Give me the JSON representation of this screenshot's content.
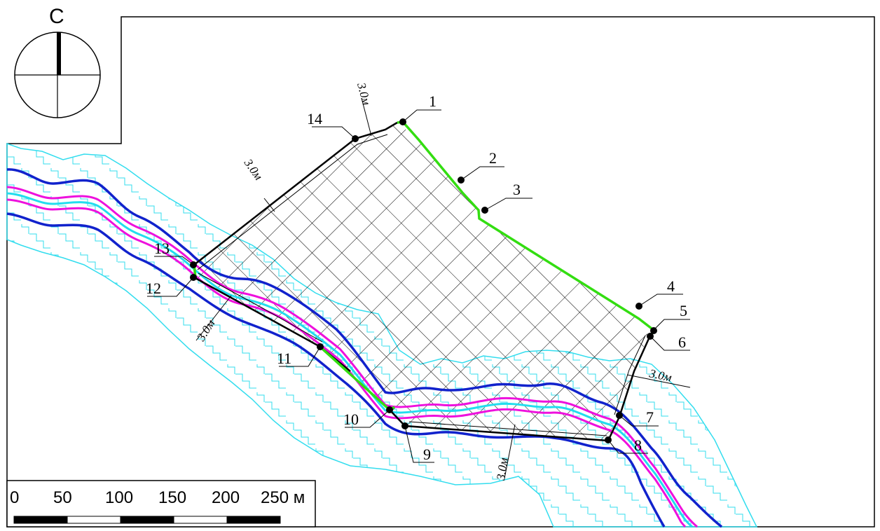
{
  "north_arrow": {
    "label": "С"
  },
  "points": [
    {
      "id": "p1",
      "label": "1"
    },
    {
      "id": "p2",
      "label": "2"
    },
    {
      "id": "p3",
      "label": "3"
    },
    {
      "id": "p4",
      "label": "4"
    },
    {
      "id": "p5",
      "label": "5"
    },
    {
      "id": "p6",
      "label": "6"
    },
    {
      "id": "p7",
      "label": "7"
    },
    {
      "id": "p8",
      "label": "8"
    },
    {
      "id": "p9",
      "label": "9"
    },
    {
      "id": "p10",
      "label": "10"
    },
    {
      "id": "p11",
      "label": "11"
    },
    {
      "id": "p12",
      "label": "12"
    },
    {
      "id": "p13",
      "label": "13"
    },
    {
      "id": "p14",
      "label": "14"
    }
  ],
  "offsets": [
    {
      "id": "o1",
      "label": "3.0м"
    },
    {
      "id": "o2",
      "label": "3.0м"
    },
    {
      "id": "o3",
      "label": "3.0м"
    },
    {
      "id": "o4",
      "label": "3.0м"
    },
    {
      "id": "o5",
      "label": "3.0м"
    }
  ],
  "scale_bar": {
    "ticks": [
      "0",
      "50",
      "100",
      "150",
      "200",
      "250 м"
    ]
  },
  "colors": {
    "boundary_green": "#33dd11",
    "boundary_black": "#000000",
    "river_blue": "#1122cc",
    "river_magenta": "#ee11dd",
    "river_cyan": "#22ddee",
    "floodplain_cyan": "#33ddee"
  }
}
